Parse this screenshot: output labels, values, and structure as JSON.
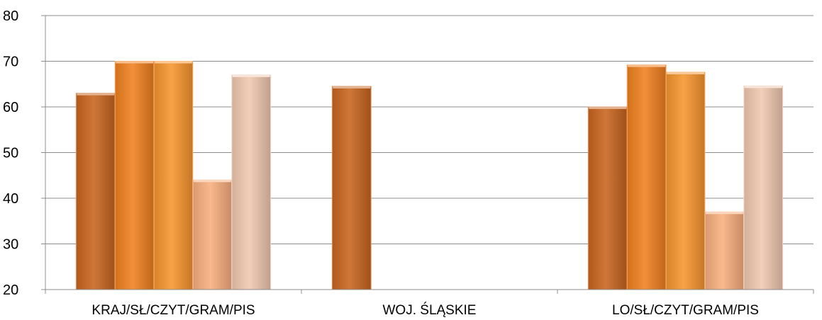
{
  "chart_data": {
    "type": "bar",
    "title": "",
    "xlabel": "",
    "ylabel": "",
    "ylim": [
      20,
      80
    ],
    "yticks": [
      20,
      30,
      40,
      50,
      60,
      70,
      80
    ],
    "grid": true,
    "legend": "none",
    "categories": [
      "KRAJ/SŁ/CZYT/GRAM/PIS",
      "WOJ. ŚLĄSKIE",
      "LO/SŁ/CZYT/GRAM/PIS"
    ],
    "series": [
      {
        "values": [
          63,
          64.5,
          60
        ],
        "color": "#C8651E"
      },
      {
        "values": [
          70,
          null,
          69.2
        ],
        "color": "#F0801F"
      },
      {
        "values": [
          70,
          null,
          67.6
        ],
        "color": "#F7952E"
      },
      {
        "values": [
          44,
          null,
          37
        ],
        "color": "#F9AE7E"
      },
      {
        "values": [
          67,
          null,
          64.6
        ],
        "color": "#F0C8B0"
      }
    ]
  }
}
